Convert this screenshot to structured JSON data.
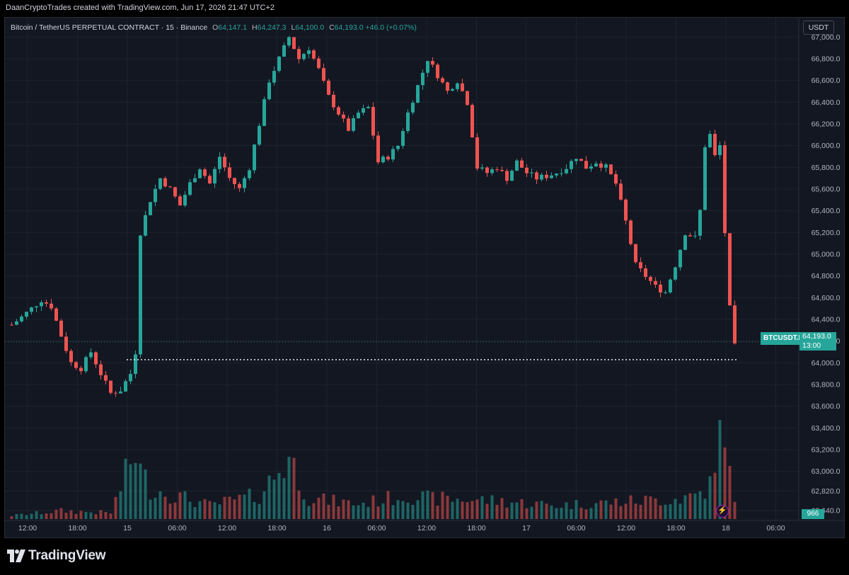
{
  "header": {
    "attribution": "DaanCryptoTrades created with TradingView.com, Jun 17, 2026 21:47 UTC+2"
  },
  "legend": {
    "symbol": "Bitcoin / TetherUS PERPETUAL CONTRACT · 15 · Binance",
    "open_key": "O",
    "open": "64,147.1",
    "high_key": "H",
    "high": "64,247.3",
    "low_key": "L",
    "low": "64,100.0",
    "close_key": "C",
    "close": "64,193.0",
    "change": "+46.0 (+0.07%)"
  },
  "toolbar": {
    "currency_label": "USDT"
  },
  "price_tag": {
    "symbol": "BTCUSDT.P",
    "price": "64,193.0",
    "countdown": "13:00"
  },
  "volume_tag": {
    "value": "966"
  },
  "footer": {
    "brand": "TradingView"
  },
  "colors": {
    "up": "#26a69a",
    "down": "#ef5350",
    "background": "#131722",
    "grid": "#1e222d",
    "axis_text": "#b2b5be"
  },
  "chart_data": {
    "type": "candlestick",
    "timeframe": "15",
    "currency": "USDT",
    "ylim": [
      62600,
      67100
    ],
    "y_ticks": [
      "67,000.0",
      "66,800.0",
      "66,600.0",
      "66,400.0",
      "66,200.0",
      "66,000.0",
      "65,800.0",
      "65,600.0",
      "65,400.0",
      "65,200.0",
      "65,000.0",
      "64,800.0",
      "64,600.0",
      "64,400.0",
      "64,200.0",
      "64,000.0",
      "63,800.0",
      "63,600.0",
      "63,400.0",
      "63,200.0",
      "63,000.0",
      "62,820.0",
      "62,640.0"
    ],
    "x_ticks": [
      "12:00",
      "18:00",
      "15",
      "06:00",
      "12:00",
      "18:00",
      "16",
      "06:00",
      "12:00",
      "18:00",
      "17",
      "06:00",
      "12:00",
      "18:00",
      "18",
      "06:00"
    ],
    "last_price": 64193.0,
    "price_line": 64120,
    "price_path": [
      [
        0,
        64350
      ],
      [
        2,
        64420
      ],
      [
        4,
        64500
      ],
      [
        6,
        64580
      ],
      [
        8,
        64520
      ],
      [
        10,
        64250
      ],
      [
        12,
        64000
      ],
      [
        14,
        63950
      ],
      [
        16,
        64100
      ],
      [
        18,
        63900
      ],
      [
        20,
        63720
      ],
      [
        22,
        63750
      ],
      [
        24,
        63900
      ],
      [
        25,
        64100
      ],
      [
        26,
        65200
      ],
      [
        28,
        65500
      ],
      [
        30,
        65700
      ],
      [
        32,
        65600
      ],
      [
        34,
        65450
      ],
      [
        36,
        65650
      ],
      [
        38,
        65800
      ],
      [
        40,
        65650
      ],
      [
        42,
        65900
      ],
      [
        44,
        65700
      ],
      [
        46,
        65600
      ],
      [
        48,
        65800
      ],
      [
        50,
        66200
      ],
      [
        52,
        66600
      ],
      [
        54,
        66800
      ],
      [
        56,
        67000
      ],
      [
        58,
        66800
      ],
      [
        60,
        66900
      ],
      [
        62,
        66700
      ],
      [
        64,
        66450
      ],
      [
        66,
        66300
      ],
      [
        68,
        66150
      ],
      [
        70,
        66300
      ],
      [
        72,
        66350
      ],
      [
        74,
        65850
      ],
      [
        76,
        65900
      ],
      [
        78,
        66000
      ],
      [
        80,
        66300
      ],
      [
        82,
        66550
      ],
      [
        84,
        66800
      ],
      [
        86,
        66650
      ],
      [
        88,
        66500
      ],
      [
        90,
        66600
      ],
      [
        92,
        66400
      ],
      [
        94,
        65800
      ],
      [
        96,
        65750
      ],
      [
        98,
        65800
      ],
      [
        100,
        65700
      ],
      [
        102,
        65850
      ],
      [
        104,
        65750
      ],
      [
        106,
        65700
      ],
      [
        108,
        65720
      ],
      [
        110,
        65750
      ],
      [
        112,
        65800
      ],
      [
        114,
        65900
      ],
      [
        116,
        65800
      ],
      [
        118,
        65850
      ],
      [
        120,
        65800
      ],
      [
        122,
        65650
      ],
      [
        124,
        65300
      ],
      [
        126,
        64900
      ],
      [
        128,
        64800
      ],
      [
        130,
        64700
      ],
      [
        132,
        64650
      ],
      [
        134,
        64900
      ],
      [
        136,
        65200
      ],
      [
        138,
        65150
      ],
      [
        139,
        65400
      ],
      [
        140,
        66000
      ],
      [
        141,
        66100
      ],
      [
        142,
        65900
      ],
      [
        143,
        66000
      ],
      [
        144,
        65200
      ],
      [
        145,
        64500
      ],
      [
        146,
        64150
      ]
    ],
    "volume_path": [
      [
        0,
        50
      ],
      [
        10,
        120
      ],
      [
        20,
        90
      ],
      [
        25,
        1000
      ],
      [
        26,
        700
      ],
      [
        28,
        450
      ],
      [
        40,
        200
      ],
      [
        50,
        350
      ],
      [
        56,
        900
      ],
      [
        60,
        300
      ],
      [
        70,
        220
      ],
      [
        80,
        350
      ],
      [
        84,
        300
      ],
      [
        95,
        280
      ],
      [
        110,
        200
      ],
      [
        125,
        260
      ],
      [
        135,
        300
      ],
      [
        140,
        420
      ],
      [
        142,
        600
      ],
      [
        143,
        1300
      ],
      [
        144,
        900
      ],
      [
        145,
        700
      ],
      [
        146,
        380
      ]
    ]
  }
}
